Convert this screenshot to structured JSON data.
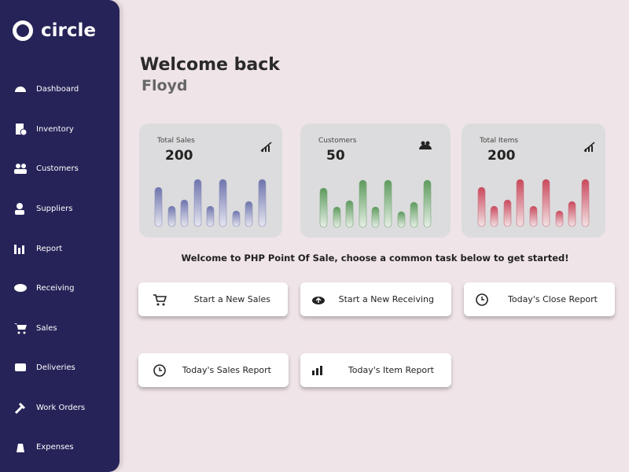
{
  "brand": "circle",
  "nav": [
    "Dashboard",
    "Inventory",
    "Customers",
    "Suppliers",
    "Report",
    "Receiving",
    "Sales",
    "Deliveries",
    "Work Orders",
    "Expenses"
  ],
  "header": {
    "title": "Welcome back",
    "name": "Floyd"
  },
  "stats": [
    {
      "label": "Total Sales",
      "value": 200
    },
    {
      "label": "Customers",
      "value": 50
    },
    {
      "label": "Total Items",
      "value": 200
    }
  ],
  "intro": "Welcome to PHP Point Of Sale, choose a common task below to get started!",
  "tasks": [
    "Start a New Sales",
    "Start a New Receiving",
    "Today's Close Report",
    "Today's Sales Report",
    "Today's Item Report"
  ]
}
